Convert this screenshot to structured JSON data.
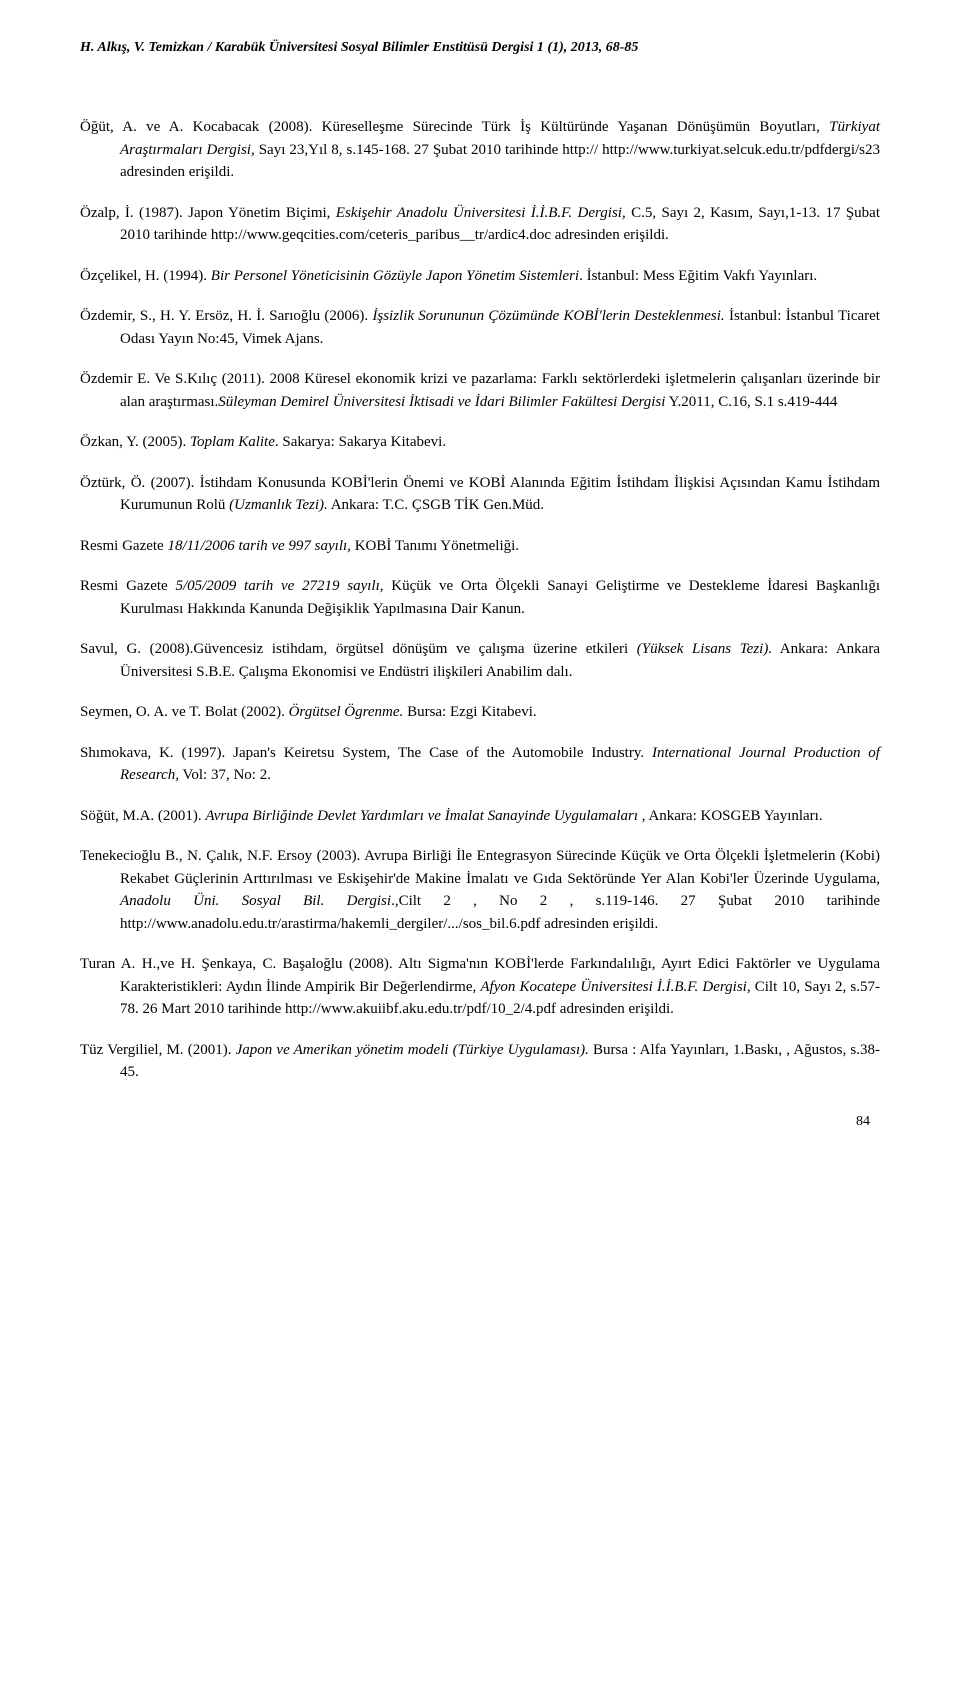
{
  "header": "H. Alkış, V. Temizkan / Karabük Üniversitesi Sosyal Bilimler Enstitüsü Dergisi 1 (1), 2013, 68-85",
  "refs": {
    "r1": {
      "a": "Öğüt, A. ve A. Kocabacak (2008). Küreselleşme Sürecinde Türk İş Kültüründe Yaşanan Dönüşümün Boyutları, ",
      "i1": "Türkiyat Araştırmaları Dergisi",
      "b": ", Sayı 23,Yıl 8, s.145-168. 27 Şubat 2010 tarihinde http:// http://www.turkiyat.selcuk.edu.tr/pdfdergi/s23 adresinden erişildi."
    },
    "r2": {
      "a": "Özalp, İ. (1987). Japon Yönetim Biçimi, ",
      "i1": "Eskişehir Anadolu Üniversitesi İ.İ.B.F. Dergisi",
      "b": ", C.5, Sayı 2, Kasım, Sayı,1-13. 17 Şubat 2010 tarihinde http://www.geqcities.com/ceteris_paribus__tr/ardic4.doc adresinden erişildi."
    },
    "r3": {
      "a": "Özçelikel, H. (1994). ",
      "i1": "Bir Personel Yöneticisinin Gözüyle Japon Yönetim Sistemleri",
      "b": ". İstanbul: Mess Eğitim Vakfı Yayınları."
    },
    "r4": {
      "a": "Özdemir, S., H. Y. Ersöz, H. İ. Sarıoğlu (2006). ",
      "i1": "İşsizlik Sorununun Çözümünde KOBİ'lerin Desteklenmesi.",
      "b": " İstanbul: İstanbul Ticaret Odası Yayın No:45, Vimek Ajans."
    },
    "r5": {
      "a": "Özdemir E. Ve S.Kılıç (2011). 2008 Küresel ekonomik krizi ve pazarlama: Farklı sektörlerdeki işletmelerin çalışanları üzerinde bir alan araştırması.",
      "i1": "Süleyman Demirel Üniversitesi İktisadi ve İdari Bilimler Fakültesi Dergisi",
      "b": " Y.2011, C.16, S.1 s.419-444"
    },
    "r6": {
      "a": "Özkan, Y. (2005). ",
      "i1": "Toplam Kalite",
      "b": ". Sakarya: Sakarya Kitabevi."
    },
    "r7": {
      "a": "Öztürk, Ö. (2007). İstihdam Konusunda KOBİ'lerin Önemi ve KOBİ Alanında Eğitim İstihdam İlişkisi Açısından Kamu İstihdam Kurumunun Rolü ",
      "i1": "(Uzmanlık Tezi).",
      "b": " Ankara: T.C. ÇSGB TİK Gen.Müd."
    },
    "r8": {
      "a": "Resmi Gazete ",
      "i1": "18/11/2006 tarih ve 997 sayılı,",
      "b": " KOBİ Tanımı Yönetmeliği."
    },
    "r9": {
      "a": "Resmi Gazete ",
      "i1": "5/05/2009 tarih ve 27219 sayılı",
      "b": ", Küçük ve Orta Ölçekli Sanayi Geliştirme ve Destekleme İdaresi Başkanlığı Kurulması Hakkında Kanunda Değişiklik Yapılmasına Dair Kanun."
    },
    "r10": {
      "a": "Savul, G. (2008).Güvencesiz istihdam, örgütsel dönüşüm ve çalışma üzerine etkileri ",
      "i1": "(Yüksek Lisans Tezi).",
      "b": " Ankara: Ankara Üniversitesi S.B.E. Çalışma Ekonomisi ve Endüstri ilişkileri Anabilim dalı."
    },
    "r11": {
      "a": "Seymen, O. A. ve T. Bolat (2002). ",
      "i1": "Örgütsel Ögrenme.",
      "b": " Bursa: Ezgi Kitabevi."
    },
    "r12": {
      "a": "Shımokava, K. (1997). Japan's Keiretsu System, The Case of the Automobile Industry. ",
      "i1": "International  Journal Production of Research,",
      "b": " Vol: 37, No: 2."
    },
    "r13": {
      "a": "Söğüt, M.A. (2001).   ",
      "i1": "Avrupa Birliğinde Devlet Yardımları ve İmalat Sanayinde Uygulamaları",
      "b": " , Ankara: KOSGEB Yayınları."
    },
    "r14": {
      "a": "Tenekecioğlu B., N. Çalık, N.F. Ersoy (2003). Avrupa Birliği İle Entegrasyon Sürecinde Küçük ve Orta Ölçekli İşletmelerin (Kobi) Rekabet Güçlerinin Arttırılması ve Eskişehir'de Makine İmalatı ve Gıda Sektöründe Yer Alan Kobi'ler Üzerinde Uygulama, ",
      "i1": "Anadolu Üni. Sosyal Bil. Dergisi",
      "b": ".,Cilt 2 , No 2 , s.119-146. 27 Şubat 2010 tarihinde http://www.anadolu.edu.tr/arastirma/hakemli_dergiler/.../sos_bil.6.pdf adresinden erişildi."
    },
    "r15": {
      "a": "Turan A. H.,ve  H. Şenkaya, C. Başaloğlu (2008). Altı Sigma'nın KOBİ'lerde Farkındalılığı, Ayırt Edici Faktörler ve Uygulama Karakteristikleri: Aydın İlinde Ampirik Bir Değerlendirme, ",
      "i1": "Afyon Kocatepe Üniversitesi  İ.İ.B.F. Dergisi",
      "b": ", Cilt 10, Sayı 2, s.57-78. 26 Mart 2010 tarihinde http://www.akuiibf.aku.edu.tr/pdf/10_2/4.pdf adresinden erişildi."
    },
    "r16": {
      "a": "Tüz Vergiliel, M. (2001). ",
      "i1": "Japon ve Amerikan yönetim modeli (Türkiye Uygulaması).",
      "b": "  Bursa : Alfa Yayınları, 1.Baskı, , Ağustos, s.38-45."
    }
  },
  "pageNumber": "84"
}
